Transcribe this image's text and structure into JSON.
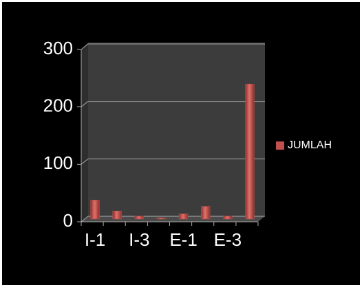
{
  "chart_data": {
    "type": "bar",
    "categories": [
      "I-1",
      null,
      "I-3",
      null,
      "E-1",
      null,
      "E-3",
      null
    ],
    "series": [
      {
        "name": "JUMLAH",
        "color": "#c0504d",
        "values": [
          33,
          14,
          5,
          2,
          9,
          22,
          5,
          235
        ]
      }
    ],
    "ylim": [
      0,
      300
    ],
    "yticks": [
      0,
      100,
      200,
      300
    ],
    "grid": true,
    "legend": "right"
  }
}
